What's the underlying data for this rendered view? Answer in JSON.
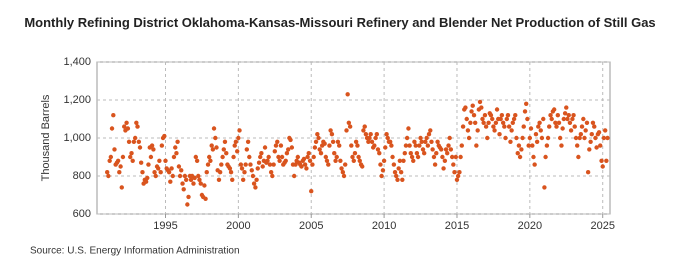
{
  "chart_data": {
    "type": "scatter",
    "title": "Monthly Refining District Oklahoma-Kansas-Missouri Refinery and Blender Net Production of Still Gas",
    "y_label": "Thousand Barrels",
    "source": "Source: U.S. Energy Information Administration",
    "color": "#d9541e",
    "grid": true,
    "xlim": [
      1990.3,
      2025.5
    ],
    "ylim": [
      600,
      1400
    ],
    "xticks": [
      1995,
      2000,
      2005,
      2010,
      2015,
      2020,
      2025
    ],
    "yticks": [
      600,
      800,
      {
        "value": 1000,
        "label": "1,000"
      },
      {
        "value": 1200,
        "label": "1,200"
      },
      {
        "value": 1400,
        "label": "1,400"
      }
    ],
    "x": [
      1991.0,
      1991.08,
      1991.17,
      1991.25,
      1991.33,
      1991.42,
      1991.5,
      1991.58,
      1991.67,
      1991.75,
      1991.83,
      1991.92,
      1992.0,
      1992.08,
      1992.17,
      1992.25,
      1992.33,
      1992.42,
      1992.5,
      1992.58,
      1992.67,
      1992.75,
      1992.83,
      1992.92,
      1993.0,
      1993.08,
      1993.17,
      1993.25,
      1993.33,
      1993.42,
      1993.5,
      1993.58,
      1993.67,
      1993.75,
      1993.83,
      1993.92,
      1994.0,
      1994.08,
      1994.17,
      1994.25,
      1994.33,
      1994.42,
      1994.5,
      1994.58,
      1994.67,
      1994.75,
      1994.83,
      1994.92,
      1995.0,
      1995.08,
      1995.17,
      1995.25,
      1995.33,
      1995.42,
      1995.5,
      1995.58,
      1995.67,
      1995.75,
      1995.83,
      1995.92,
      1996.0,
      1996.08,
      1996.17,
      1996.25,
      1996.33,
      1996.42,
      1996.5,
      1996.58,
      1996.67,
      1996.75,
      1996.83,
      1996.92,
      1997.0,
      1997.08,
      1997.17,
      1997.25,
      1997.33,
      1997.42,
      1997.5,
      1997.58,
      1997.67,
      1997.75,
      1997.83,
      1997.92,
      1998.0,
      1998.08,
      1998.17,
      1998.25,
      1998.33,
      1998.42,
      1998.5,
      1998.58,
      1998.67,
      1998.75,
      1998.83,
      1998.92,
      1999.0,
      1999.08,
      1999.17,
      1999.25,
      1999.33,
      1999.42,
      1999.5,
      1999.58,
      1999.67,
      1999.75,
      1999.83,
      1999.92,
      2000.0,
      2000.08,
      2000.17,
      2000.25,
      2000.33,
      2000.42,
      2000.5,
      2000.58,
      2000.67,
      2000.75,
      2000.83,
      2000.92,
      2001.0,
      2001.08,
      2001.17,
      2001.25,
      2001.33,
      2001.42,
      2001.5,
      2001.58,
      2001.67,
      2001.75,
      2001.83,
      2001.92,
      2002.0,
      2002.08,
      2002.17,
      2002.25,
      2002.33,
      2002.42,
      2002.5,
      2002.58,
      2002.67,
      2002.75,
      2002.83,
      2002.92,
      2003.0,
      2003.08,
      2003.17,
      2003.25,
      2003.33,
      2003.42,
      2003.5,
      2003.58,
      2003.67,
      2003.75,
      2003.83,
      2003.92,
      2004.0,
      2004.08,
      2004.17,
      2004.25,
      2004.33,
      2004.42,
      2004.5,
      2004.58,
      2004.67,
      2004.75,
      2004.83,
      2004.92,
      2005.0,
      2005.08,
      2005.17,
      2005.25,
      2005.33,
      2005.42,
      2005.5,
      2005.58,
      2005.67,
      2005.75,
      2005.83,
      2005.92,
      2006.0,
      2006.08,
      2006.17,
      2006.25,
      2006.33,
      2006.42,
      2006.5,
      2006.58,
      2006.67,
      2006.75,
      2006.83,
      2006.92,
      2007.0,
      2007.08,
      2007.17,
      2007.25,
      2007.33,
      2007.42,
      2007.5,
      2007.58,
      2007.67,
      2007.75,
      2007.83,
      2007.92,
      2008.0,
      2008.08,
      2008.17,
      2008.25,
      2008.33,
      2008.42,
      2008.5,
      2008.58,
      2008.67,
      2008.75,
      2008.83,
      2008.92,
      2009.0,
      2009.08,
      2009.17,
      2009.25,
      2009.33,
      2009.42,
      2009.5,
      2009.58,
      2009.67,
      2009.75,
      2009.83,
      2009.92,
      2010.0,
      2010.08,
      2010.17,
      2010.25,
      2010.33,
      2010.42,
      2010.5,
      2010.58,
      2010.67,
      2010.75,
      2010.83,
      2010.92,
      2011.0,
      2011.08,
      2011.17,
      2011.25,
      2011.33,
      2011.42,
      2011.5,
      2011.58,
      2011.67,
      2011.75,
      2011.83,
      2011.92,
      2012.0,
      2012.08,
      2012.17,
      2012.25,
      2012.33,
      2012.42,
      2012.5,
      2012.58,
      2012.67,
      2012.75,
      2012.83,
      2012.92,
      2013.0,
      2013.08,
      2013.17,
      2013.25,
      2013.33,
      2013.42,
      2013.5,
      2013.58,
      2013.67,
      2013.75,
      2013.83,
      2013.92,
      2014.0,
      2014.08,
      2014.17,
      2014.25,
      2014.33,
      2014.42,
      2014.5,
      2014.58,
      2014.67,
      2014.75,
      2014.83,
      2014.92,
      2015.0,
      2015.08,
      2015.17,
      2015.25,
      2015.33,
      2015.42,
      2015.5,
      2015.58,
      2015.67,
      2015.75,
      2015.83,
      2015.92,
      2016.0,
      2016.08,
      2016.17,
      2016.25,
      2016.33,
      2016.42,
      2016.5,
      2016.58,
      2016.67,
      2016.75,
      2016.83,
      2016.92,
      2017.0,
      2017.08,
      2017.17,
      2017.25,
      2017.33,
      2017.42,
      2017.5,
      2017.58,
      2017.67,
      2017.75,
      2017.83,
      2017.92,
      2018.0,
      2018.08,
      2018.17,
      2018.25,
      2018.33,
      2018.42,
      2018.5,
      2018.58,
      2018.67,
      2018.75,
      2018.83,
      2018.92,
      2019.0,
      2019.08,
      2019.17,
      2019.25,
      2019.33,
      2019.42,
      2019.5,
      2019.58,
      2019.67,
      2019.75,
      2019.83,
      2019.92,
      2020.0,
      2020.08,
      2020.17,
      2020.25,
      2020.33,
      2020.42,
      2020.5,
      2020.58,
      2020.67,
      2020.75,
      2020.83,
      2020.92,
      2021.0,
      2021.08,
      2021.17,
      2021.25,
      2021.33,
      2021.42,
      2021.5,
      2021.58,
      2021.67,
      2021.75,
      2021.83,
      2021.92,
      2022.0,
      2022.08,
      2022.17,
      2022.25,
      2022.33,
      2022.42,
      2022.5,
      2022.58,
      2022.67,
      2022.75,
      2022.83,
      2022.92,
      2023.0,
      2023.08,
      2023.17,
      2023.25,
      2023.33,
      2023.42,
      2023.5,
      2023.58,
      2023.67,
      2023.75,
      2023.83,
      2023.92,
      2024.0,
      2024.08,
      2024.17,
      2024.25,
      2024.33,
      2024.42,
      2024.5,
      2024.58,
      2024.67,
      2024.75,
      2024.83,
      2024.92,
      2025.0,
      2025.08,
      2025.17,
      2025.25,
      2025.33
    ],
    "values": [
      820,
      800,
      880,
      900,
      1050,
      1120,
      940,
      860,
      870,
      880,
      820,
      850,
      740,
      900,
      1060,
      1040,
      1080,
      1050,
      980,
      900,
      920,
      880,
      980,
      1000,
      1080,
      1060,
      980,
      950,
      870,
      820,
      760,
      780,
      770,
      790,
      860,
      950,
      900,
      960,
      940,
      820,
      800,
      850,
      840,
      880,
      820,
      960,
      1000,
      1010,
      880,
      840,
      830,
      820,
      770,
      840,
      800,
      900,
      950,
      920,
      980,
      850,
      800,
      830,
      760,
      730,
      800,
      780,
      650,
      690,
      800,
      780,
      800,
      760,
      790,
      900,
      880,
      800,
      780,
      760,
      700,
      690,
      750,
      680,
      820,
      860,
      900,
      880,
      960,
      940,
      1050,
      1000,
      950,
      830,
      780,
      820,
      860,
      900,
      940,
      980,
      920,
      860,
      850,
      840,
      820,
      780,
      900,
      960,
      980,
      930,
      1000,
      1040,
      860,
      840,
      780,
      820,
      860,
      940,
      980,
      900,
      860,
      830,
      800,
      760,
      740,
      780,
      840,
      870,
      900,
      920,
      850,
      880,
      950,
      870,
      880,
      900,
      860,
      820,
      800,
      860,
      930,
      960,
      980,
      900,
      880,
      960,
      900,
      860,
      870,
      880,
      920,
      940,
      1000,
      990,
      950,
      860,
      800,
      860,
      880,
      900,
      870,
      860,
      850,
      880,
      890,
      860,
      840,
      900,
      920,
      880,
      720,
      860,
      900,
      950,
      980,
      1020,
      1000,
      940,
      920,
      960,
      980,
      970,
      900,
      880,
      860,
      960,
      1040,
      1020,
      980,
      920,
      880,
      900,
      980,
      960,
      880,
      840,
      820,
      800,
      860,
      1040,
      1230,
      1080,
      1060,
      960,
      900,
      880,
      920,
      980,
      960,
      900,
      880,
      860,
      850,
      1040,
      1060,
      1020,
      1000,
      980,
      1000,
      1020,
      980,
      950,
      960,
      1000,
      1020,
      940,
      920,
      860,
      800,
      830,
      880,
      950,
      1020,
      1000,
      980,
      980,
      960,
      900,
      860,
      820,
      800,
      780,
      840,
      880,
      820,
      780,
      880,
      920,
      960,
      1000,
      1050,
      960,
      920,
      900,
      880,
      980,
      960,
      920,
      900,
      960,
      1000,
      980,
      940,
      920,
      980,
      1000,
      960,
      1020,
      1040,
      980,
      940,
      900,
      860,
      920,
      980,
      960,
      950,
      940,
      900,
      840,
      880,
      940,
      920,
      960,
      1000,
      940,
      900,
      860,
      820,
      900,
      780,
      800,
      820,
      900,
      960,
      1060,
      1150,
      1160,
      1100,
      1040,
      1000,
      1080,
      1140,
      1170,
      1120,
      1080,
      960,
      1040,
      1150,
      1190,
      1160,
      1100,
      1080,
      1120,
      1060,
      1000,
      1080,
      1130,
      1120,
      1100,
      1060,
      1040,
      1080,
      1150,
      1100,
      1020,
      1100,
      1120,
      1080,
      1060,
      1000,
      1100,
      1120,
      1060,
      980,
      1040,
      1080,
      1100,
      1120,
      1000,
      920,
      960,
      900,
      940,
      1000,
      1060,
      1140,
      1180,
      1100,
      960,
      1000,
      1050,
      960,
      900,
      860,
      1020,
      980,
      1060,
      1080,
      1040,
      1000,
      1100,
      740,
      900,
      960,
      1000,
      1060,
      1120,
      1100,
      1140,
      1150,
      1080,
      1060,
      1120,
      1080,
      1000,
      960,
      1050,
      1100,
      1130,
      1160,
      1100,
      1120,
      1080,
      1040,
      1100,
      1120,
      1060,
      1000,
      960,
      900,
      1000,
      1020,
      1060,
      1100,
      1000,
      1040,
      1080,
      820,
      940,
      980,
      1020,
      1080,
      1060,
      1000,
      950,
      1020,
      1030,
      960,
      880,
      850,
      1000,
      1040,
      880,
      1000
    ]
  }
}
